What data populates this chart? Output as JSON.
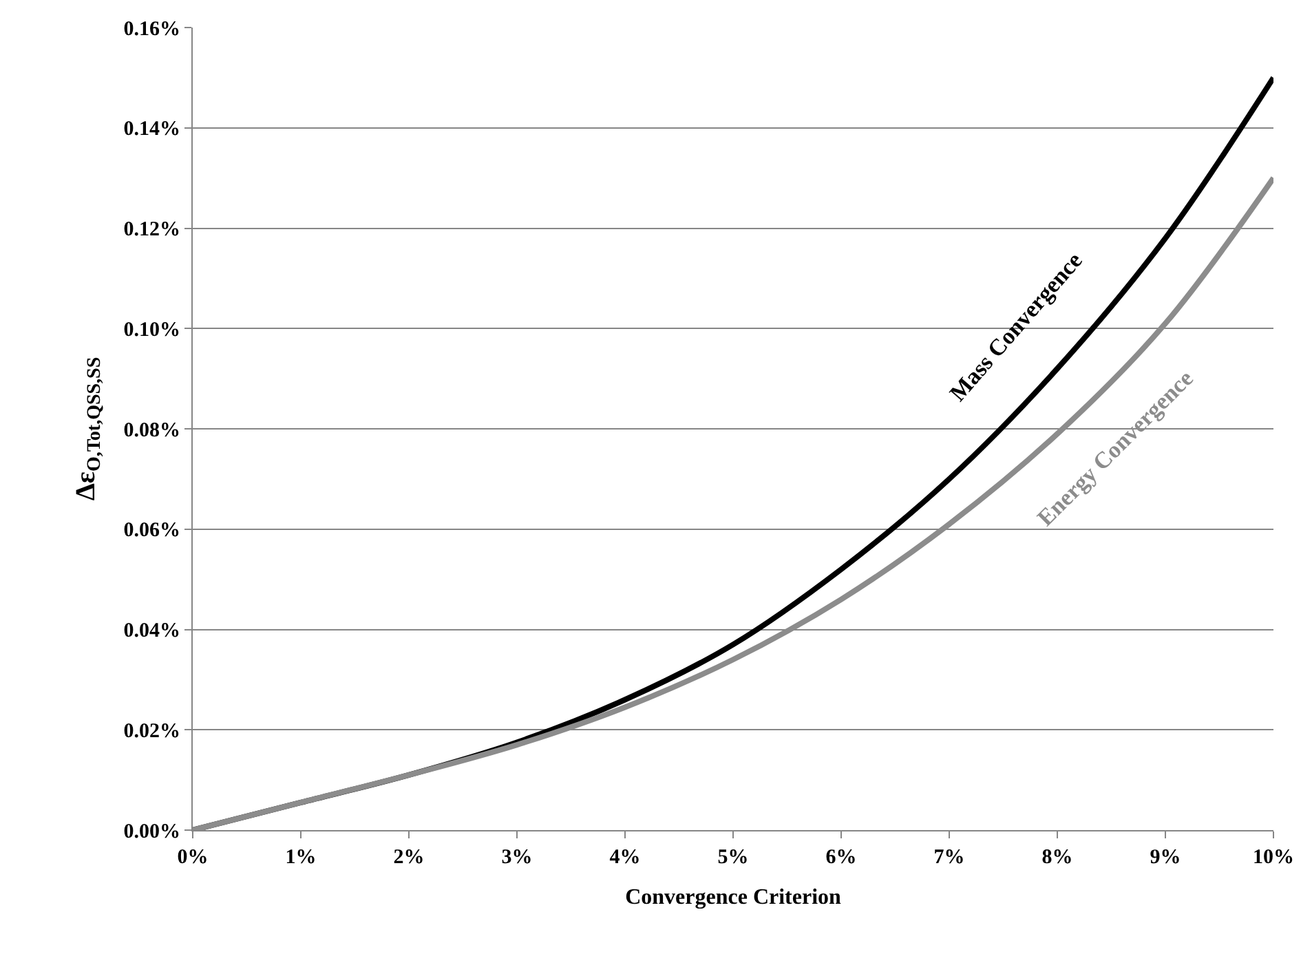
{
  "chart_data": {
    "type": "line",
    "xlabel": "Convergence Criterion",
    "ylabel": "Δε$_{O,Tot,QSS,SS}$",
    "x": [
      0,
      1,
      2,
      3,
      4,
      5,
      6,
      7,
      8,
      9,
      10
    ],
    "series": [
      {
        "name": "Mass Convergence",
        "color": "#000000",
        "values": [
          0,
          0.0055,
          0.011,
          0.0175,
          0.026,
          0.037,
          0.052,
          0.07,
          0.092,
          0.118,
          0.15
        ]
      },
      {
        "name": "Energy Convergence",
        "color": "#8c8c8c",
        "values": [
          0,
          0.0055,
          0.011,
          0.017,
          0.0245,
          0.034,
          0.046,
          0.061,
          0.079,
          0.101,
          0.13
        ]
      }
    ],
    "xlim": [
      0,
      10
    ],
    "ylim": [
      0,
      0.16
    ],
    "xticks": [
      {
        "value": 0,
        "label": "0%"
      },
      {
        "value": 1,
        "label": "1%"
      },
      {
        "value": 2,
        "label": "2%"
      },
      {
        "value": 3,
        "label": "3%"
      },
      {
        "value": 4,
        "label": "4%"
      },
      {
        "value": 5,
        "label": "5%"
      },
      {
        "value": 6,
        "label": "6%"
      },
      {
        "value": 7,
        "label": "7%"
      },
      {
        "value": 8,
        "label": "8%"
      },
      {
        "value": 9,
        "label": "9%"
      },
      {
        "value": 10,
        "label": "10%"
      }
    ],
    "yticks": [
      {
        "value": 0,
        "label": "0.00%"
      },
      {
        "value": 0.02,
        "label": "0.02%"
      },
      {
        "value": 0.04,
        "label": "0.04%"
      },
      {
        "value": 0.06,
        "label": "0.06%"
      },
      {
        "value": 0.08,
        "label": "0.08%"
      },
      {
        "value": 0.1,
        "label": "0.10%"
      },
      {
        "value": 0.12,
        "label": "0.12%"
      },
      {
        "value": 0.14,
        "label": "0.14%"
      },
      {
        "value": 0.16,
        "label": "0.16%"
      }
    ],
    "grid": "y",
    "legend": false,
    "marker": "none",
    "line_style": "solid"
  }
}
